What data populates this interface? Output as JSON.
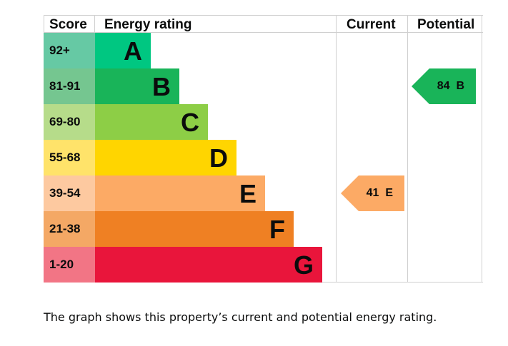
{
  "chart_data": {
    "type": "bar",
    "title": "Energy rating",
    "headers": {
      "score": "Score",
      "rating": "Energy rating",
      "current": "Current",
      "potential": "Potential"
    },
    "bands": [
      {
        "letter": "A",
        "range": "92+",
        "color": "#00c781",
        "score_color": "#66c9a4"
      },
      {
        "letter": "B",
        "range": "81-91",
        "color": "#19b459",
        "score_color": "#75c690"
      },
      {
        "letter": "C",
        "range": "69-80",
        "color": "#8dce46",
        "score_color": "#b6dc8a"
      },
      {
        "letter": "D",
        "range": "55-68",
        "color": "#ffd500",
        "score_color": "#ffe36a"
      },
      {
        "letter": "E",
        "range": "39-54",
        "color": "#fcaa65",
        "score_color": "#fdc9a0"
      },
      {
        "letter": "F",
        "range": "21-38",
        "color": "#ef8023",
        "score_color": "#f4a865"
      },
      {
        "letter": "G",
        "range": "1-20",
        "color": "#e9153b",
        "score_color": "#f27585"
      }
    ],
    "current": {
      "value": 41,
      "band": "E",
      "label": "41  E",
      "color": "#fcaa65"
    },
    "potential": {
      "value": 84,
      "band": "B",
      "label": "84  B",
      "color": "#19b459"
    }
  },
  "caption": "The graph shows this property’s current and potential energy rating."
}
